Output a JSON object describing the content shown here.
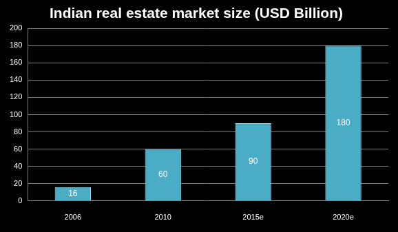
{
  "chart_data": {
    "type": "bar",
    "title": "Indian real estate market size (USD Billion)",
    "categories": [
      "2006",
      "2010",
      "2015e",
      "2020e"
    ],
    "values": [
      16,
      60,
      90,
      180
    ],
    "color": "#4bacc6",
    "ylim": [
      0,
      200
    ],
    "yticks": [
      0,
      20,
      40,
      60,
      80,
      100,
      120,
      140,
      160,
      180,
      200
    ],
    "grid": true,
    "data_labels": true
  }
}
